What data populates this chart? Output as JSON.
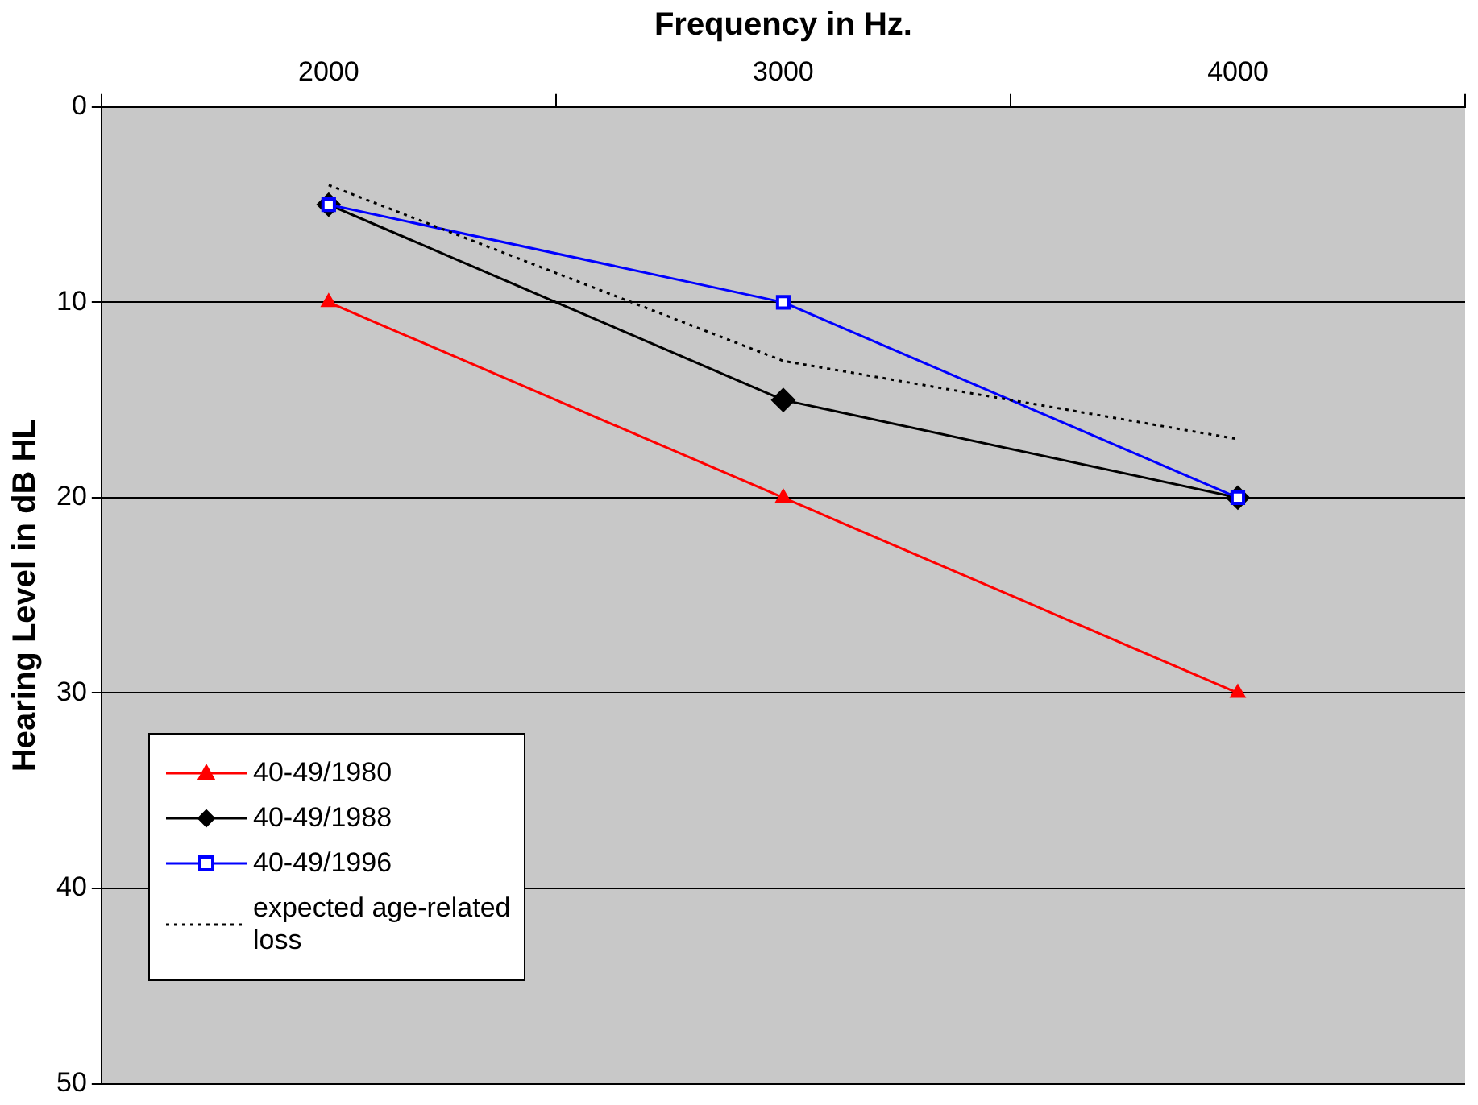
{
  "chart_data": {
    "type": "line",
    "xlabel": "Frequency in Hz.",
    "ylabel": "Hearing Level in dB HL",
    "categories": [
      "2000",
      "3000",
      "4000"
    ],
    "ylim": [
      50,
      0
    ],
    "yticks": [
      0,
      10,
      20,
      30,
      40,
      50
    ],
    "grid": "y",
    "legend": "bottom left",
    "series": [
      {
        "name": "40-49/1980",
        "color": "#ff0000",
        "values": [
          10,
          20,
          30
        ],
        "marker": "triangle",
        "line_style": "solid"
      },
      {
        "name": "40-49/1988",
        "color": "#000000",
        "values": [
          5,
          15,
          20
        ],
        "marker": "diamond",
        "line_style": "solid"
      },
      {
        "name": "40-49/1996",
        "color": "#0000ff",
        "values": [
          5,
          10,
          20
        ],
        "marker": "square",
        "line_style": "solid"
      },
      {
        "name": "expected age-related loss",
        "color": "#000000",
        "values": [
          4,
          13,
          17
        ],
        "marker": "none",
        "line_style": "dotted"
      }
    ]
  }
}
